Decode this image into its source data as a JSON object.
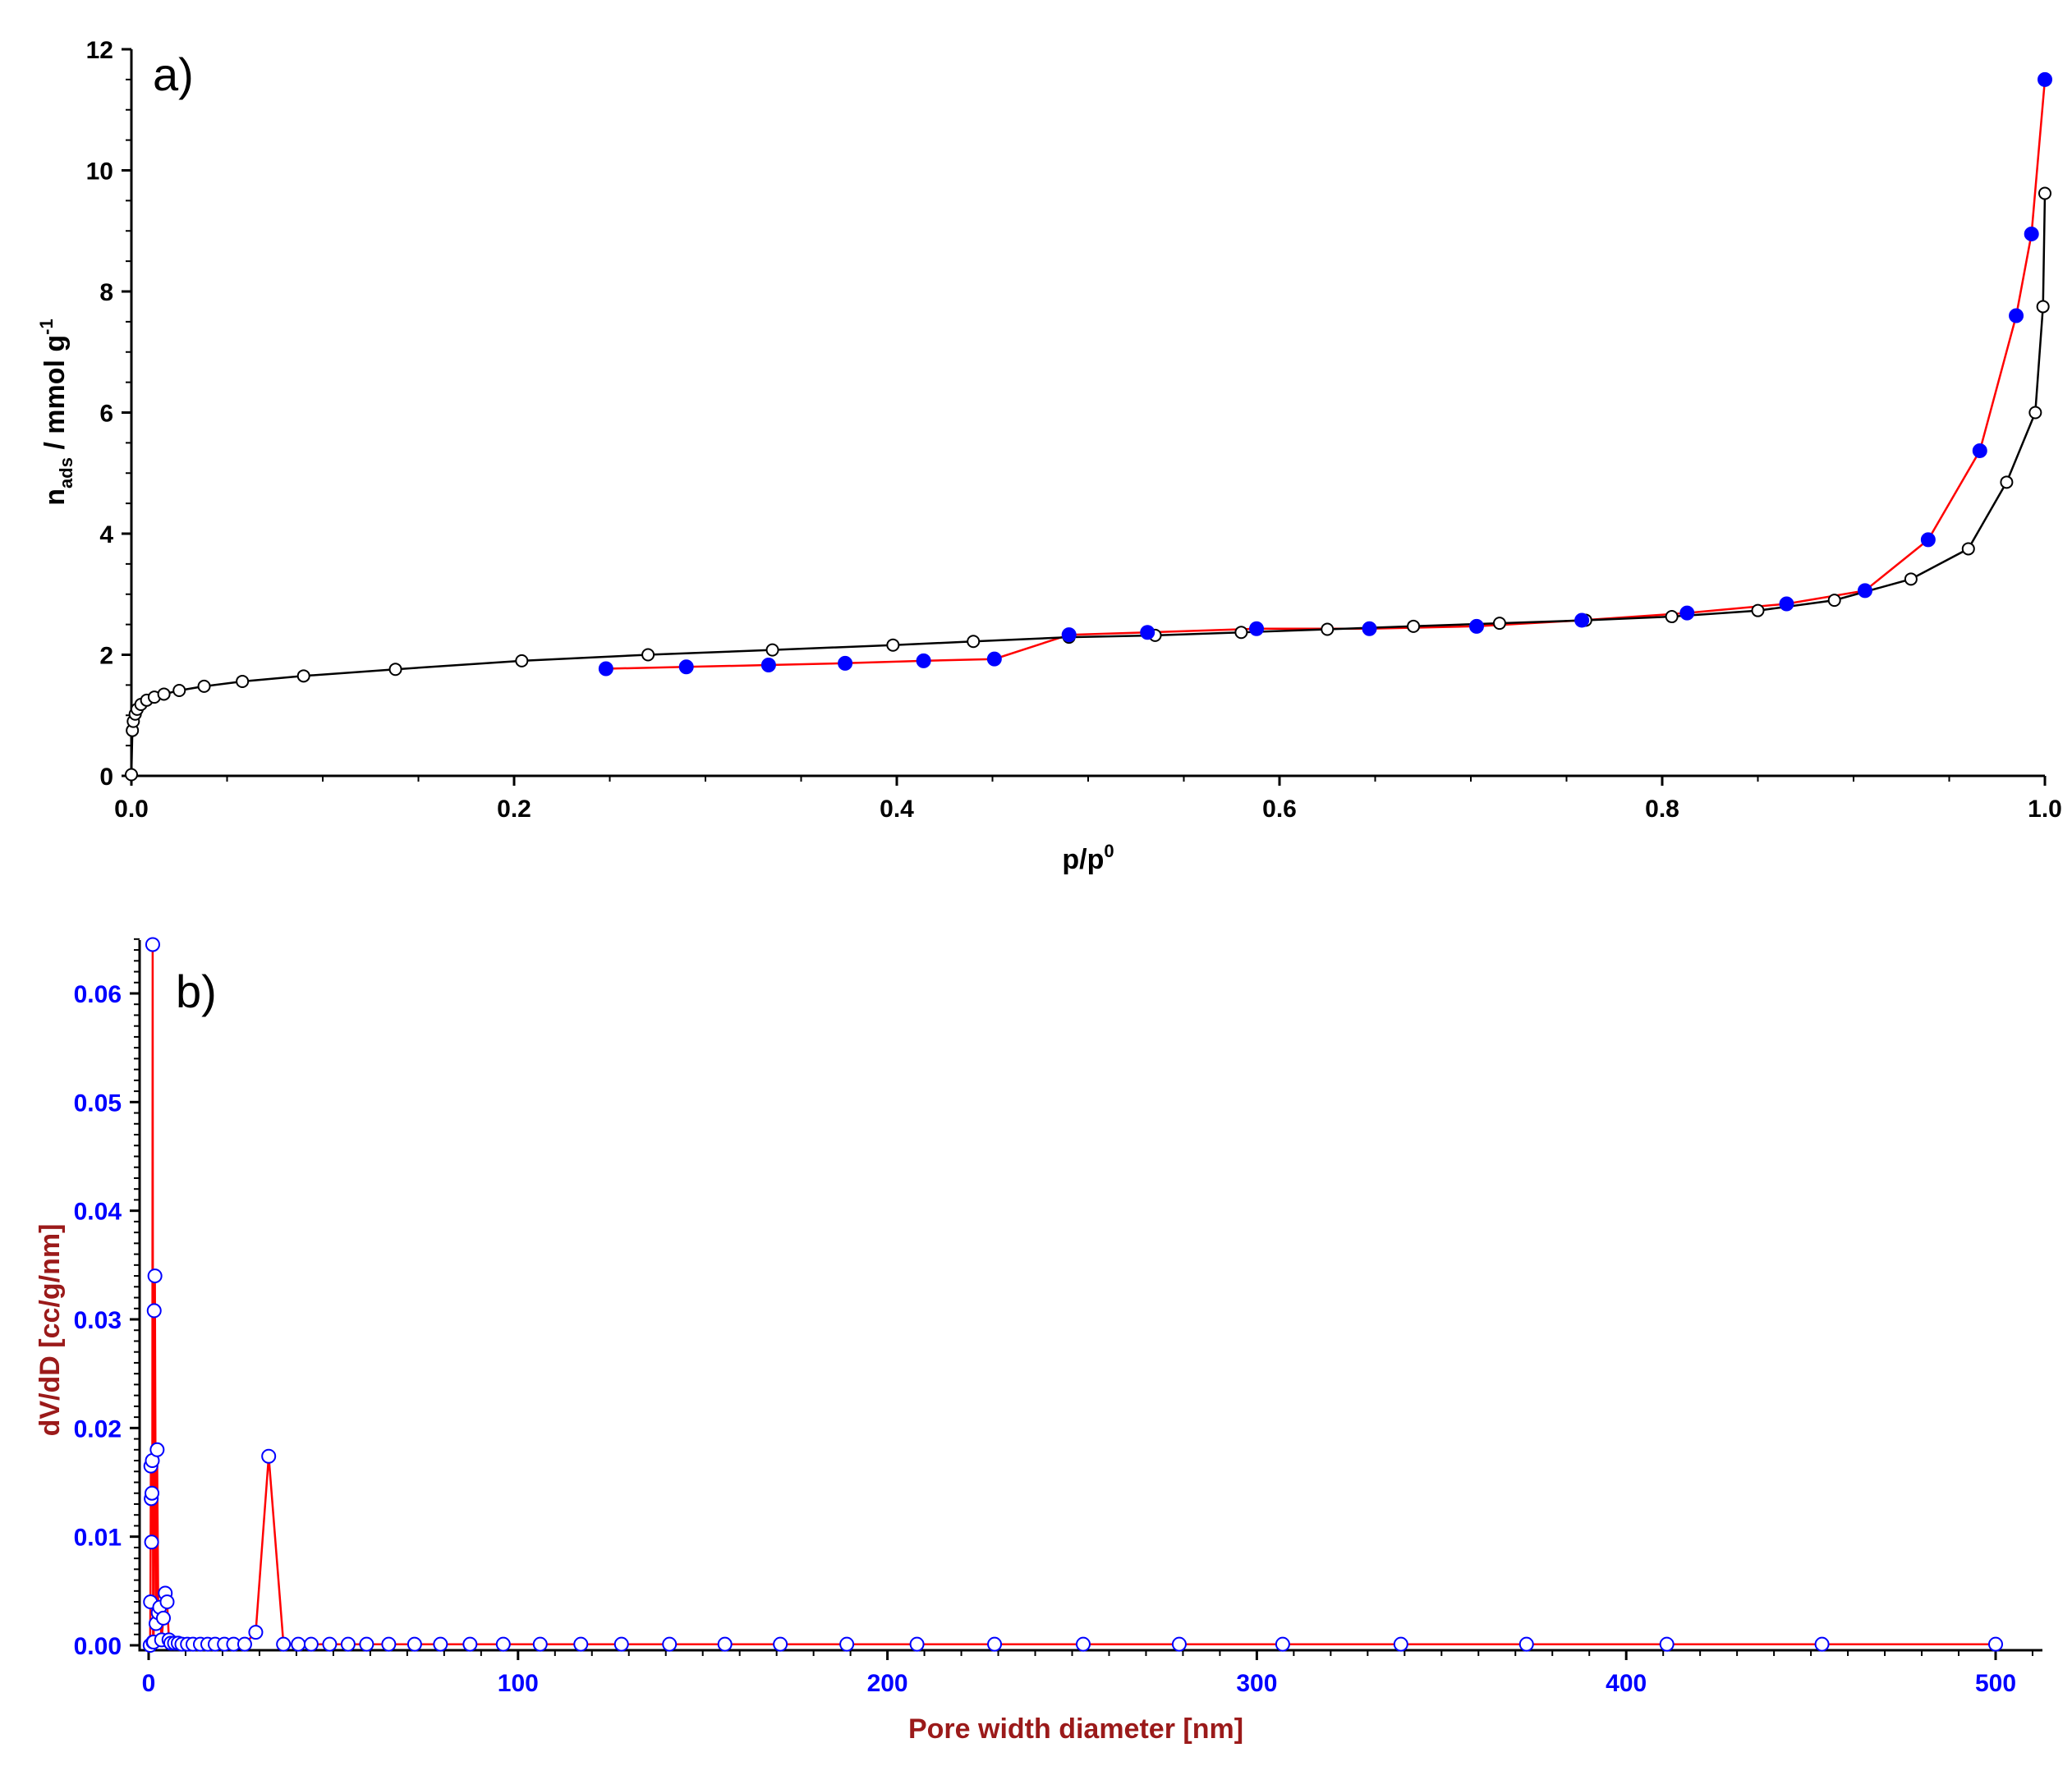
{
  "colors": {
    "axis": "#000000",
    "adsorption_line": "#000000",
    "desorption_line": "#ff0000",
    "desorption_marker": "#0000ff",
    "b_axis_title": "#9b1a1a",
    "b_tick": "#0000ff",
    "b_line": "#ff0000",
    "b_marker": "#0000ff"
  },
  "chart_data": [
    {
      "type": "scatter",
      "panel_label": "a)",
      "xlabel_main": "p/p",
      "xlabel_sup": "0",
      "ylabel_main": "n",
      "ylabel_sub": "ads",
      "ylabel_rest": " / mmol g",
      "ylabel_sup": "-1",
      "xlim": [
        0,
        1.0
      ],
      "ylim": [
        0,
        12
      ],
      "xticks": [
        0.0,
        0.2,
        0.4,
        0.6,
        0.8,
        1.0
      ],
      "xtick_labels": [
        "0.0",
        "0.2",
        "0.4",
        "0.6",
        "0.8",
        "1.0"
      ],
      "yticks": [
        0,
        2,
        4,
        6,
        8,
        10,
        12
      ],
      "ytick_labels": [
        "0",
        "2",
        "4",
        "6",
        "8",
        "10",
        "12"
      ],
      "grid": false,
      "series": [
        {
          "marker": "open-circle",
          "color": "#000000",
          "x": [
            0.0,
            0.0005,
            0.001,
            0.002,
            0.003,
            0.005,
            0.008,
            0.012,
            0.017,
            0.025,
            0.038,
            0.058,
            0.09,
            0.138,
            0.204,
            0.27,
            0.335,
            0.398,
            0.44,
            0.49,
            0.535,
            0.58,
            0.625,
            0.67,
            0.715,
            0.76,
            0.805,
            0.85,
            0.89,
            0.93,
            0.96,
            0.98,
            0.995,
            0.999,
            1.0
          ],
          "y": [
            0.02,
            0.75,
            0.9,
            1.02,
            1.1,
            1.18,
            1.25,
            1.3,
            1.35,
            1.41,
            1.48,
            1.56,
            1.65,
            1.76,
            1.9,
            2.0,
            2.08,
            2.16,
            2.22,
            2.29,
            2.32,
            2.37,
            2.42,
            2.47,
            2.52,
            2.57,
            2.63,
            2.73,
            2.9,
            3.25,
            3.75,
            4.85,
            6.0,
            7.75,
            9.62
          ]
        },
        {
          "marker": "filled-circle",
          "color": "#0000ff",
          "line_color": "#ff0000",
          "x": [
            1.0,
            0.993,
            0.985,
            0.966,
            0.939,
            0.906,
            0.865,
            0.813,
            0.758,
            0.703,
            0.647,
            0.588,
            0.531,
            0.49,
            0.451,
            0.414,
            0.373,
            0.333,
            0.29,
            0.248
          ],
          "y": [
            11.5,
            8.95,
            7.6,
            5.37,
            3.9,
            3.06,
            2.84,
            2.69,
            2.57,
            2.47,
            2.43,
            2.43,
            2.37,
            2.33,
            1.93,
            1.9,
            1.86,
            1.83,
            1.8,
            1.77
          ]
        }
      ]
    },
    {
      "type": "line",
      "panel_label": "b)",
      "xlabel": "Pore width diameter  [nm]",
      "ylabel": "dV/dD [cc/g/nm]",
      "xlim": [
        0,
        520
      ],
      "ylim": [
        0,
        0.066
      ],
      "xticks": [
        0,
        100,
        200,
        300,
        400,
        500
      ],
      "xtick_labels": [
        "0",
        "100",
        "200",
        "300",
        "400",
        "500"
      ],
      "yticks": [
        0,
        0.01,
        0.02,
        0.03,
        0.04,
        0.05,
        0.06
      ],
      "ytick_labels": [
        "0.00",
        "0.01",
        "0.02",
        "0.03",
        "0.04",
        "0.05",
        "0.06"
      ],
      "grid": false,
      "series": [
        {
          "marker": "open-circle",
          "marker_color": "#0000ff",
          "line_color": "#ff0000",
          "x": [
            0.4,
            0.5,
            0.6,
            0.7,
            0.8,
            0.9,
            1.0,
            1.1,
            1.2,
            1.35,
            1.5,
            1.7,
            2.0,
            2.3,
            2.6,
            3.0,
            3.5,
            4.0,
            4.5,
            5.0,
            5.5,
            6.0,
            7.0,
            8.0,
            9.0,
            10.5,
            12.0,
            14.0,
            16.0,
            18.0,
            20.5,
            23.0,
            26.0,
            29.0,
            32.5,
            36.5,
            40.5,
            44.0,
            49.0,
            54.0,
            59.0,
            65.0,
            72.0,
            79.0,
            87.0,
            96.0,
            106.0,
            117.0,
            128.0,
            141.0,
            156.0,
            171.0,
            189.0,
            208.0,
            229.0,
            253.0,
            279.0,
            307.0,
            339.0,
            373.0,
            411.0,
            453.0,
            500.0
          ],
          "y": [
            0.0,
            0.004,
            0.0165,
            0.0135,
            0.0095,
            0.014,
            0.017,
            0.0645,
            0.0003,
            0.0003,
            0.0308,
            0.034,
            0.002,
            0.018,
            0.003,
            0.0035,
            0.0005,
            0.0025,
            0.0048,
            0.004,
            0.0005,
            0.0002,
            0.0002,
            0.0002,
            0.0001,
            0.0001,
            0.0001,
            0.0001,
            0.0001,
            0.0001,
            0.0001,
            0.0001,
            0.0001,
            0.0012,
            0.0174,
            0.0001,
            0.0001,
            0.0001,
            0.0001,
            0.0001,
            0.0001,
            0.0001,
            0.0001,
            0.0001,
            0.0001,
            0.0001,
            0.0001,
            0.0001,
            0.0001,
            0.0001,
            0.0001,
            0.0001,
            0.0001,
            0.0001,
            0.0001,
            0.0001,
            0.0001,
            0.0001,
            0.0001,
            0.0001,
            0.0001,
            0.0001,
            0.0001
          ]
        }
      ]
    }
  ]
}
